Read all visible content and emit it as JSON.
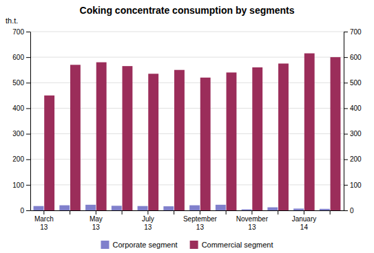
{
  "chart_data": {
    "type": "bar",
    "title": "Coking concentrate  consumption  by  segments",
    "ylabel": "th.t.",
    "categories": [
      "March\n13",
      null,
      "May\n13",
      null,
      "July\n13",
      null,
      "September\n13",
      null,
      "November\n13",
      null,
      "January\n14",
      null
    ],
    "series": [
      {
        "name": "Corporate segment",
        "color": "#8080CC",
        "values": [
          17,
          20,
          22,
          18,
          17,
          16,
          20,
          22,
          4,
          12,
          7,
          6
        ]
      },
      {
        "name": "Commercial segment",
        "color": "#9B2D5A",
        "values": [
          450,
          570,
          580,
          565,
          535,
          550,
          520,
          540,
          560,
          575,
          615,
          600
        ]
      }
    ],
    "ylim": [
      0,
      700
    ],
    "yticks": [
      0,
      100,
      200,
      300,
      400,
      500,
      600,
      700
    ],
    "y2lim": [
      0,
      700
    ],
    "y2ticks": [
      0,
      100,
      200,
      300,
      400,
      500,
      600,
      700
    ],
    "grid": true,
    "legend": "bottom"
  }
}
